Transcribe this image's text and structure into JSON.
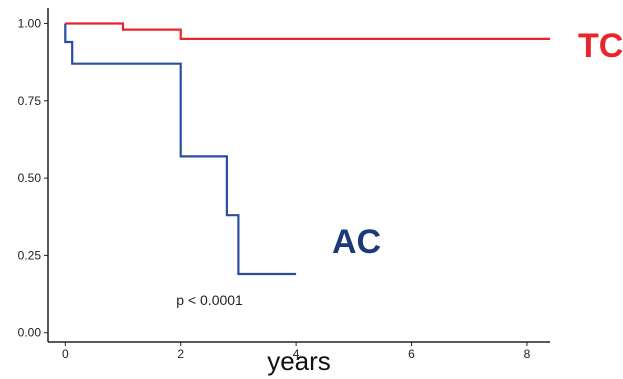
{
  "chart_data": {
    "type": "line",
    "xlabel": "years",
    "ylabel": "",
    "xlim": [
      -0.3,
      8.4
    ],
    "ylim": [
      -0.03,
      1.05
    ],
    "x_ticks": [
      "0",
      "2",
      "4",
      "6",
      "8"
    ],
    "y_ticks": [
      "0.00",
      "0.25",
      "0.50",
      "0.75",
      "1.00"
    ],
    "grid": false,
    "series": [
      {
        "name": "TC",
        "color": "#e8262a",
        "step": true,
        "points": [
          [
            0,
            1.0
          ],
          [
            1.0,
            1.0
          ],
          [
            1.0,
            0.98
          ],
          [
            2.0,
            0.98
          ],
          [
            2.0,
            0.95
          ],
          [
            8.4,
            0.95
          ]
        ]
      },
      {
        "name": "AC",
        "color": "#2a4f9e",
        "step": true,
        "points": [
          [
            0,
            1.0
          ],
          [
            0,
            0.94
          ],
          [
            0.12,
            0.94
          ],
          [
            0.12,
            0.87
          ],
          [
            2.0,
            0.87
          ],
          [
            2.0,
            0.57
          ],
          [
            2.8,
            0.57
          ],
          [
            2.8,
            0.38
          ],
          [
            3.0,
            0.38
          ],
          [
            3.0,
            0.19
          ],
          [
            4.0,
            0.19
          ]
        ]
      }
    ],
    "annotations": [
      {
        "text": "p < 0.0001",
        "x": 2.5,
        "y": 0.09
      }
    ]
  },
  "labels": {
    "tc": "TC",
    "ac": "AC",
    "tc_color": "#e8262a",
    "ac_color": "#1c3a7a"
  }
}
